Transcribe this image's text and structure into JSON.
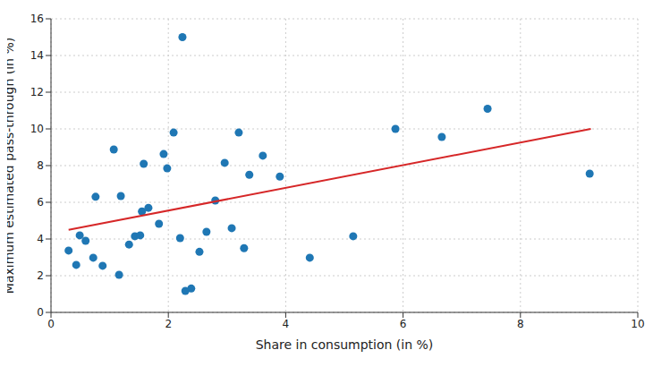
{
  "chart_data": {
    "type": "scatter",
    "x_label": "Share in consumption (in %)",
    "y_label": "Maximum estimated pass-through (in %)",
    "xlim": [
      0,
      10
    ],
    "xticks": [
      0,
      2,
      4,
      6,
      8,
      10
    ],
    "ylim": [
      0,
      16
    ],
    "yticks": [
      0,
      2,
      4,
      6,
      8,
      10,
      12,
      14,
      16
    ],
    "grid": true,
    "series": [
      {
        "type": "scatter",
        "marker": "circle",
        "color": "#1f77b4",
        "x": [
          0.3,
          0.43,
          0.49,
          0.59,
          0.72,
          0.76,
          0.88,
          1.07,
          1.16,
          1.19,
          1.33,
          1.43,
          1.52,
          1.55,
          1.58,
          1.66,
          1.84,
          1.92,
          1.98,
          2.09,
          2.2,
          2.24,
          2.29,
          2.39,
          2.53,
          2.65,
          2.8,
          2.96,
          3.08,
          3.2,
          3.29,
          3.38,
          3.61,
          3.9,
          4.41,
          5.15,
          5.87,
          6.66,
          7.44,
          9.18
        ],
        "values": [
          3.37,
          2.59,
          4.2,
          3.9,
          2.98,
          6.3,
          2.54,
          8.88,
          2.05,
          6.34,
          3.7,
          4.15,
          4.2,
          5.5,
          8.1,
          5.7,
          4.83,
          8.63,
          7.85,
          9.8,
          4.05,
          15.0,
          1.17,
          1.3,
          3.3,
          4.39,
          6.1,
          8.15,
          4.59,
          9.8,
          3.5,
          7.5,
          8.54,
          7.4,
          2.98,
          4.15,
          10.0,
          9.56,
          11.1,
          7.56
        ]
      },
      {
        "type": "line",
        "line_style": "solid",
        "color": "#d62728",
        "x": [
          0.3,
          9.2
        ],
        "values": [
          4.5,
          10.0
        ]
      }
    ]
  }
}
